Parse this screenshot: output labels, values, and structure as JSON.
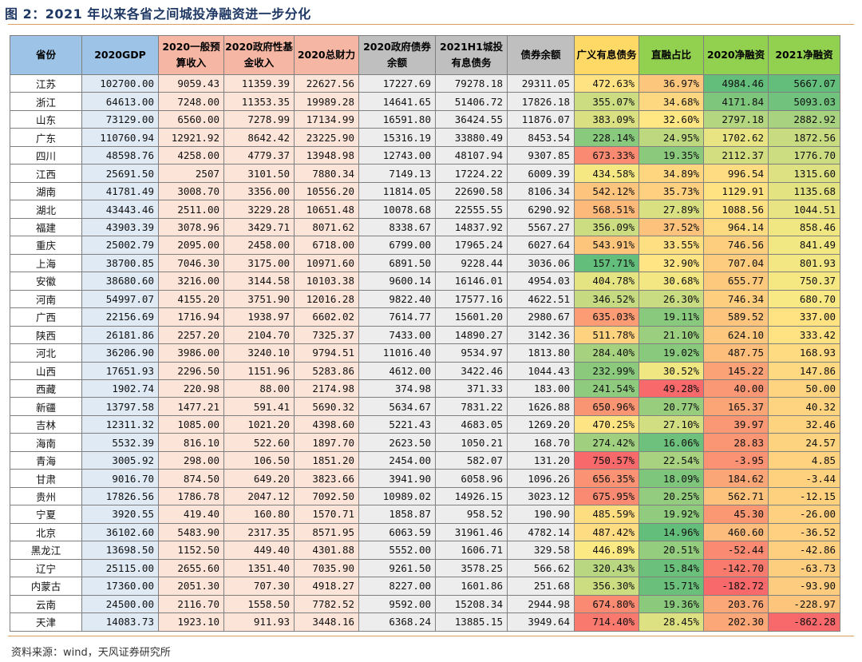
{
  "title": "图 2：2021 年以来各省之间城投净融资进一步分化",
  "source": "资料来源：wind，天风证券研究所",
  "columns": [
    "省份",
    "2020GDP",
    "2020一般预算收入",
    "2020政府性基金收入",
    "2020总财力",
    "2020政府债券余额",
    "2021H1城投有息债务",
    "债券余额",
    "广义有息债务",
    "直融占比",
    "2020净融资",
    "2021净融资"
  ],
  "rows": [
    {
      "province": "江苏",
      "gdp": "102700.00",
      "budget": "9059.43",
      "fund": "11359.39",
      "total": "22627.56",
      "gov_bond": "17227.69",
      "ct_debt": "79278.18",
      "bond_bal": "29311.05",
      "broad": "472.63%",
      "direct": "36.97%",
      "net2020": "4984.46",
      "net2021": "5667.07"
    },
    {
      "province": "浙江",
      "gdp": "64613.00",
      "budget": "7248.00",
      "fund": "11353.35",
      "total": "19989.28",
      "gov_bond": "14641.65",
      "ct_debt": "51406.72",
      "bond_bal": "17826.18",
      "broad": "355.07%",
      "direct": "34.68%",
      "net2020": "4171.84",
      "net2021": "5093.03"
    },
    {
      "province": "山东",
      "gdp": "73129.00",
      "budget": "6560.00",
      "fund": "7278.99",
      "total": "17134.99",
      "gov_bond": "16591.80",
      "ct_debt": "36424.55",
      "bond_bal": "11876.07",
      "broad": "383.09%",
      "direct": "32.60%",
      "net2020": "2797.18",
      "net2021": "2882.92"
    },
    {
      "province": "广东",
      "gdp": "110760.94",
      "budget": "12921.92",
      "fund": "8642.42",
      "total": "23225.90",
      "gov_bond": "15316.19",
      "ct_debt": "33880.49",
      "bond_bal": "8453.54",
      "broad": "228.14%",
      "direct": "24.95%",
      "net2020": "1702.62",
      "net2021": "1872.56"
    },
    {
      "province": "四川",
      "gdp": "48598.76",
      "budget": "4258.00",
      "fund": "4779.37",
      "total": "13948.98",
      "gov_bond": "12743.00",
      "ct_debt": "48107.94",
      "bond_bal": "9307.85",
      "broad": "673.33%",
      "direct": "19.35%",
      "net2020": "2112.37",
      "net2021": "1776.70"
    },
    {
      "province": "江西",
      "gdp": "25691.50",
      "budget": "2507",
      "fund": "3101.50",
      "total": "7880.34",
      "gov_bond": "7149.13",
      "ct_debt": "17224.22",
      "bond_bal": "6009.39",
      "broad": "434.58%",
      "direct": "34.89%",
      "net2020": "996.54",
      "net2021": "1315.60"
    },
    {
      "province": "湖南",
      "gdp": "41781.49",
      "budget": "3008.70",
      "fund": "3356.00",
      "total": "10556.20",
      "gov_bond": "11814.05",
      "ct_debt": "22690.58",
      "bond_bal": "8106.34",
      "broad": "542.12%",
      "direct": "35.73%",
      "net2020": "1129.91",
      "net2021": "1135.68"
    },
    {
      "province": "湖北",
      "gdp": "43443.46",
      "budget": "2511.00",
      "fund": "3229.28",
      "total": "10651.48",
      "gov_bond": "10078.68",
      "ct_debt": "22555.55",
      "bond_bal": "6290.92",
      "broad": "568.51%",
      "direct": "27.89%",
      "net2020": "1088.56",
      "net2021": "1044.51"
    },
    {
      "province": "福建",
      "gdp": "43903.39",
      "budget": "3078.96",
      "fund": "3429.71",
      "total": "8071.62",
      "gov_bond": "8338.67",
      "ct_debt": "14837.92",
      "bond_bal": "5567.27",
      "broad": "356.09%",
      "direct": "37.52%",
      "net2020": "964.14",
      "net2021": "858.46"
    },
    {
      "province": "重庆",
      "gdp": "25002.79",
      "budget": "2095.00",
      "fund": "2458.00",
      "total": "6718.00",
      "gov_bond": "6799.00",
      "ct_debt": "17965.24",
      "bond_bal": "6027.64",
      "broad": "543.91%",
      "direct": "33.55%",
      "net2020": "746.56",
      "net2021": "841.49"
    },
    {
      "province": "上海",
      "gdp": "38700.85",
      "budget": "7046.30",
      "fund": "3175.00",
      "total": "10971.60",
      "gov_bond": "6891.50",
      "ct_debt": "9228.44",
      "bond_bal": "3036.06",
      "broad": "157.71%",
      "direct": "32.90%",
      "net2020": "707.04",
      "net2021": "801.93"
    },
    {
      "province": "安徽",
      "gdp": "38680.60",
      "budget": "3216.00",
      "fund": "3144.58",
      "total": "10103.38",
      "gov_bond": "9600.14",
      "ct_debt": "16146.01",
      "bond_bal": "4954.03",
      "broad": "404.78%",
      "direct": "30.68%",
      "net2020": "655.77",
      "net2021": "750.37"
    },
    {
      "province": "河南",
      "gdp": "54997.07",
      "budget": "4155.20",
      "fund": "3751.90",
      "total": "12016.28",
      "gov_bond": "9822.40",
      "ct_debt": "17577.16",
      "bond_bal": "4622.51",
      "broad": "346.52%",
      "direct": "26.30%",
      "net2020": "746.34",
      "net2021": "680.70"
    },
    {
      "province": "广西",
      "gdp": "22156.69",
      "budget": "1716.94",
      "fund": "1938.97",
      "total": "6602.02",
      "gov_bond": "7614.77",
      "ct_debt": "15601.20",
      "bond_bal": "2980.67",
      "broad": "635.03%",
      "direct": "19.11%",
      "net2020": "589.52",
      "net2021": "337.00"
    },
    {
      "province": "陕西",
      "gdp": "26181.86",
      "budget": "2257.20",
      "fund": "2104.70",
      "total": "7325.37",
      "gov_bond": "7433.00",
      "ct_debt": "14890.27",
      "bond_bal": "3142.36",
      "broad": "511.78%",
      "direct": "21.10%",
      "net2020": "624.10",
      "net2021": "333.42"
    },
    {
      "province": "河北",
      "gdp": "36206.90",
      "budget": "3986.00",
      "fund": "3240.10",
      "total": "9794.51",
      "gov_bond": "11016.40",
      "ct_debt": "9534.97",
      "bond_bal": "1813.80",
      "broad": "284.40%",
      "direct": "19.02%",
      "net2020": "487.75",
      "net2021": "168.93"
    },
    {
      "province": "山西",
      "gdp": "17651.93",
      "budget": "2296.50",
      "fund": "1151.96",
      "total": "5283.86",
      "gov_bond": "4612.00",
      "ct_debt": "3422.46",
      "bond_bal": "1044.43",
      "broad": "232.99%",
      "direct": "30.52%",
      "net2020": "145.22",
      "net2021": "147.86"
    },
    {
      "province": "西藏",
      "gdp": "1902.74",
      "budget": "220.98",
      "fund": "88.00",
      "total": "2174.98",
      "gov_bond": "374.98",
      "ct_debt": "371.33",
      "bond_bal": "183.00",
      "broad": "241.54%",
      "direct": "49.28%",
      "net2020": "40.00",
      "net2021": "50.00"
    },
    {
      "province": "新疆",
      "gdp": "13797.58",
      "budget": "1477.21",
      "fund": "591.41",
      "total": "5690.32",
      "gov_bond": "5634.67",
      "ct_debt": "7831.22",
      "bond_bal": "1626.88",
      "broad": "650.96%",
      "direct": "20.77%",
      "net2020": "165.37",
      "net2021": "40.32"
    },
    {
      "province": "吉林",
      "gdp": "12311.32",
      "budget": "1085.00",
      "fund": "1021.20",
      "total": "4398.60",
      "gov_bond": "5221.43",
      "ct_debt": "4683.05",
      "bond_bal": "1269.20",
      "broad": "470.25%",
      "direct": "27.10%",
      "net2020": "39.97",
      "net2021": "32.46"
    },
    {
      "province": "海南",
      "gdp": "5532.39",
      "budget": "816.10",
      "fund": "522.60",
      "total": "1897.70",
      "gov_bond": "2623.50",
      "ct_debt": "1050.21",
      "bond_bal": "168.70",
      "broad": "274.42%",
      "direct": "16.06%",
      "net2020": "28.83",
      "net2021": "24.57"
    },
    {
      "province": "青海",
      "gdp": "3005.92",
      "budget": "298.00",
      "fund": "106.50",
      "total": "1851.20",
      "gov_bond": "2454.00",
      "ct_debt": "582.07",
      "bond_bal": "131.20",
      "broad": "750.57%",
      "direct": "22.54%",
      "net2020": "-3.95",
      "net2021": "4.85"
    },
    {
      "province": "甘肃",
      "gdp": "9016.70",
      "budget": "874.50",
      "fund": "649.20",
      "total": "3823.66",
      "gov_bond": "3941.90",
      "ct_debt": "6058.96",
      "bond_bal": "1096.26",
      "broad": "656.35%",
      "direct": "18.09%",
      "net2020": "184.62",
      "net2021": "-3.44"
    },
    {
      "province": "贵州",
      "gdp": "17826.56",
      "budget": "1786.78",
      "fund": "2047.12",
      "total": "7092.50",
      "gov_bond": "10989.02",
      "ct_debt": "14926.15",
      "bond_bal": "3023.12",
      "broad": "675.95%",
      "direct": "20.25%",
      "net2020": "562.71",
      "net2021": "-12.15"
    },
    {
      "province": "宁夏",
      "gdp": "3920.55",
      "budget": "419.40",
      "fund": "160.80",
      "total": "1570.71",
      "gov_bond": "1858.87",
      "ct_debt": "958.52",
      "bond_bal": "190.90",
      "broad": "485.59%",
      "direct": "19.92%",
      "net2020": "45.30",
      "net2021": "-26.00"
    },
    {
      "province": "北京",
      "gdp": "36102.60",
      "budget": "5483.90",
      "fund": "2317.35",
      "total": "8571.95",
      "gov_bond": "6063.59",
      "ct_debt": "31961.46",
      "bond_bal": "4782.14",
      "broad": "487.42%",
      "direct": "14.96%",
      "net2020": "460.60",
      "net2021": "-36.52"
    },
    {
      "province": "黑龙江",
      "gdp": "13698.50",
      "budget": "1152.50",
      "fund": "449.40",
      "total": "4301.88",
      "gov_bond": "5552.00",
      "ct_debt": "1606.71",
      "bond_bal": "329.58",
      "broad": "446.89%",
      "direct": "20.51%",
      "net2020": "-52.44",
      "net2021": "-42.86"
    },
    {
      "province": "辽宁",
      "gdp": "25115.00",
      "budget": "2655.60",
      "fund": "1351.40",
      "total": "7035.90",
      "gov_bond": "9261.50",
      "ct_debt": "3578.25",
      "bond_bal": "566.62",
      "broad": "320.43%",
      "direct": "15.84%",
      "net2020": "-142.70",
      "net2021": "-63.73"
    },
    {
      "province": "内蒙古",
      "gdp": "17360.00",
      "budget": "2051.30",
      "fund": "707.30",
      "total": "4918.27",
      "gov_bond": "8227.00",
      "ct_debt": "1601.86",
      "bond_bal": "251.68",
      "broad": "356.30%",
      "direct": "15.71%",
      "net2020": "-182.72",
      "net2021": "-93.90"
    },
    {
      "province": "云南",
      "gdp": "24500.00",
      "budget": "2116.70",
      "fund": "1558.50",
      "total": "7782.52",
      "gov_bond": "9592.00",
      "ct_debt": "15208.34",
      "bond_bal": "2944.98",
      "broad": "674.80%",
      "direct": "19.36%",
      "net2020": "203.76",
      "net2021": "-228.97"
    },
    {
      "province": "天津",
      "gdp": "14083.73",
      "budget": "1923.10",
      "fund": "911.93",
      "total": "3448.16",
      "gov_bond": "6368.24",
      "ct_debt": "13885.15",
      "bond_bal": "3949.64",
      "broad": "714.40%",
      "direct": "28.45%",
      "net2020": "202.30",
      "net2021": "-862.28"
    }
  ]
}
